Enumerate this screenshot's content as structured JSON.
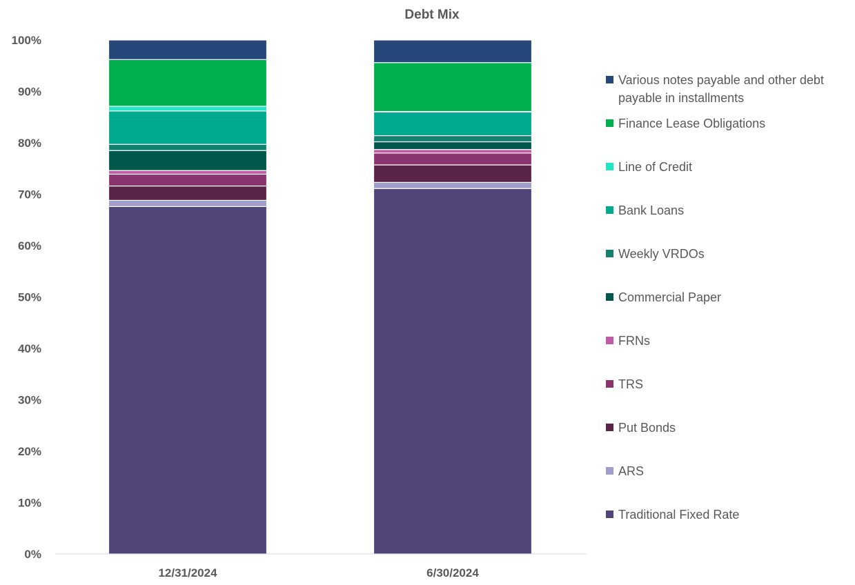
{
  "chart_data": {
    "type": "bar",
    "stacked": true,
    "title": "Debt Mix",
    "xlabel": "",
    "ylabel": "",
    "ylim": [
      0,
      100
    ],
    "y_ticks": [
      "0%",
      "10%",
      "20%",
      "30%",
      "40%",
      "50%",
      "60%",
      "70%",
      "80%",
      "90%",
      "100%"
    ],
    "categories": [
      "12/31/2024",
      "6/30/2024"
    ],
    "legend_position": "right",
    "series": [
      {
        "name": "Traditional Fixed Rate",
        "color": "#514479",
        "values": [
          67.6,
          71.1
        ]
      },
      {
        "name": "ARS",
        "color": "#A09CCB",
        "values": [
          1.2,
          1.2
        ]
      },
      {
        "name": "Put Bonds",
        "color": "#5B2547",
        "values": [
          2.8,
          3.4
        ]
      },
      {
        "name": "TRS",
        "color": "#8C3470",
        "values": [
          2.3,
          2.3
        ]
      },
      {
        "name": "FRNs",
        "color": "#C05AA4",
        "values": [
          0.7,
          0.7
        ]
      },
      {
        "name": "Commercial Paper",
        "color": "#00574A",
        "values": [
          3.9,
          1.5
        ]
      },
      {
        "name": "Weekly VRDOs",
        "color": "#12826F",
        "values": [
          1.2,
          1.2
        ]
      },
      {
        "name": "Bank Loans",
        "color": "#00AA8E",
        "values": [
          6.5,
          4.6
        ]
      },
      {
        "name": "Line of Credit",
        "color": "#22E5C6",
        "values": [
          0.9,
          0.1
        ]
      },
      {
        "name": "Finance Lease Obligations",
        "color": "#00B04F",
        "values": [
          9.1,
          9.5
        ]
      },
      {
        "name": "Various notes payable and other debt payable in installments",
        "color": "#25477A",
        "values": [
          3.8,
          4.4
        ]
      }
    ]
  }
}
